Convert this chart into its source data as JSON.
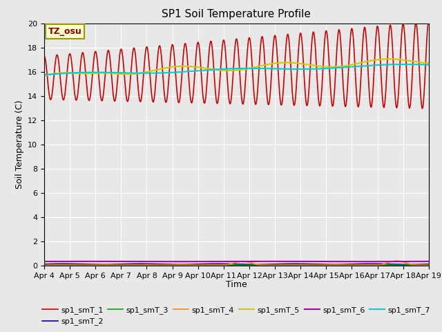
{
  "title": "SP1 Soil Temperature Profile",
  "xlabel": "Time",
  "ylabel": "Soil Temperature (C)",
  "annotation": "TZ_osu",
  "plot_bg_color": "#e8e8e8",
  "fig_bg_color": "#e8e8e8",
  "ylim": [
    0,
    20
  ],
  "yticks": [
    0,
    2,
    4,
    6,
    8,
    10,
    12,
    14,
    16,
    18,
    20
  ],
  "x_tick_labels": [
    "Apr 4",
    "Apr 5",
    "Apr 6",
    "Apr 7",
    "Apr 8",
    "Apr 9",
    "Apr 10",
    "Apr 11",
    "Apr 12",
    "Apr 13",
    "Apr 14",
    "Apr 15",
    "Apr 16",
    "Apr 17",
    "Apr 18",
    "Apr 19"
  ],
  "series_order": [
    "sp1_smT_1",
    "sp1_smT_2",
    "sp1_smT_3",
    "sp1_smT_4",
    "sp1_smT_5",
    "sp1_smT_6",
    "sp1_smT_7"
  ],
  "legend_order": [
    "sp1_smT_1",
    "sp1_smT_2",
    "sp1_smT_3",
    "sp1_smT_4",
    "sp1_smT_5",
    "sp1_smT_6",
    "sp1_smT_7"
  ],
  "series": {
    "sp1_smT_1": {
      "color": "#cc0000",
      "linewidth": 1.2
    },
    "sp1_smT_2": {
      "color": "#0000bb",
      "linewidth": 1.2
    },
    "sp1_smT_3": {
      "color": "#00aa00",
      "linewidth": 1.2
    },
    "sp1_smT_4": {
      "color": "#ff8800",
      "linewidth": 1.2
    },
    "sp1_smT_5": {
      "color": "#cccc00",
      "linewidth": 1.5
    },
    "sp1_smT_6": {
      "color": "#aa00aa",
      "linewidth": 1.5
    },
    "sp1_smT_7": {
      "color": "#00cccc",
      "linewidth": 1.5
    }
  },
  "title_fontsize": 11,
  "axis_label_fontsize": 9,
  "tick_fontsize": 8,
  "legend_fontsize": 8
}
